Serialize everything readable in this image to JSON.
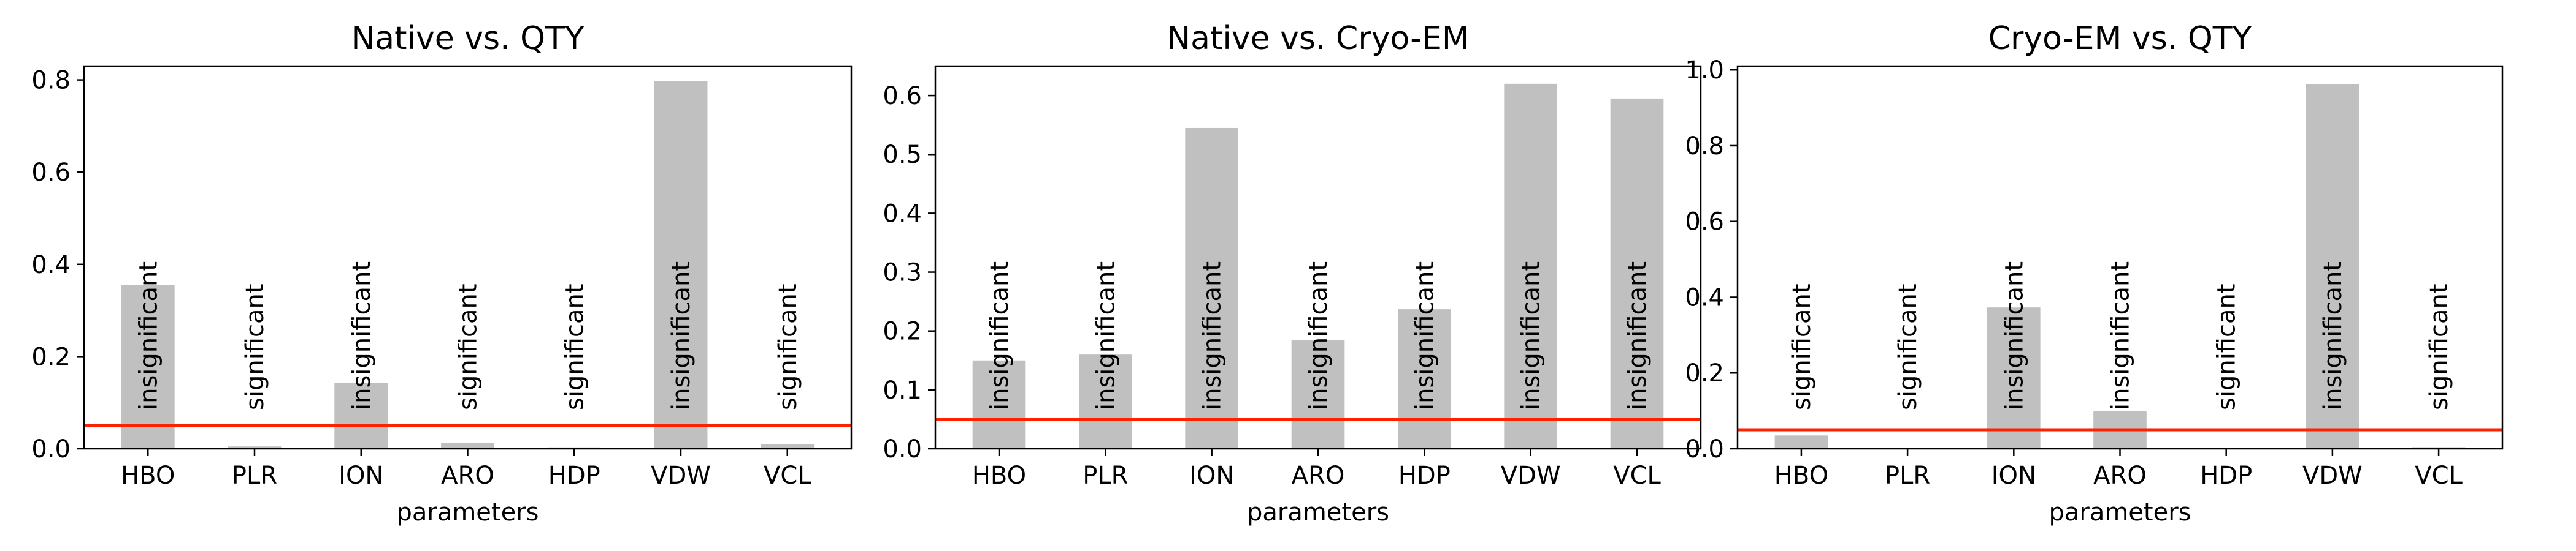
{
  "chart_data": [
    {
      "type": "bar",
      "title": "Native vs. QTY",
      "xlabel": "parameters",
      "ylabel": "",
      "categories": [
        "HBO",
        "PLR",
        "ION",
        "ARO",
        "HDP",
        "VDW",
        "VCL"
      ],
      "values": [
        0.355,
        0.005,
        0.143,
        0.013,
        0.003,
        0.797,
        0.01
      ],
      "annotations": [
        "insignificant",
        "significant",
        "insignificant",
        "significant",
        "significant",
        "insignificant",
        "significant"
      ],
      "ylim": [
        0,
        0.83
      ],
      "yticks": [
        0.0,
        0.2,
        0.4,
        0.6,
        0.8
      ],
      "threshold": 0.05,
      "bar_color": "#c0c0c0",
      "threshold_color": "#ff2200",
      "grid": false
    },
    {
      "type": "bar",
      "title": "Native vs. Cryo-EM",
      "xlabel": "parameters",
      "ylabel": "",
      "categories": [
        "HBO",
        "PLR",
        "ION",
        "ARO",
        "HDP",
        "VDW",
        "VCL"
      ],
      "values": [
        0.15,
        0.16,
        0.545,
        0.185,
        0.237,
        0.62,
        0.595
      ],
      "annotations": [
        "insignificant",
        "insignificant",
        "insignificant",
        "insignificant",
        "insignificant",
        "insignificant",
        "insignificant"
      ],
      "ylim": [
        0,
        0.65
      ],
      "yticks": [
        0.0,
        0.1,
        0.2,
        0.3,
        0.4,
        0.5,
        0.6
      ],
      "threshold": 0.05,
      "bar_color": "#c0c0c0",
      "threshold_color": "#ff2200",
      "grid": false
    },
    {
      "type": "bar",
      "title": "Cryo-EM vs. QTY",
      "xlabel": "parameters",
      "ylabel": "",
      "categories": [
        "HBO",
        "PLR",
        "ION",
        "ARO",
        "HDP",
        "VDW",
        "VCL"
      ],
      "values": [
        0.035,
        0.003,
        0.373,
        0.1,
        0.002,
        0.962,
        0.004
      ],
      "annotations": [
        "significant",
        "significant",
        "insignificant",
        "insignificant",
        "significant",
        "insignificant",
        "significant"
      ],
      "ylim": [
        0,
        1.01
      ],
      "yticks": [
        0.0,
        0.2,
        0.4,
        0.6,
        0.8,
        1.0
      ],
      "threshold": 0.05,
      "bar_color": "#c0c0c0",
      "threshold_color": "#ff2200",
      "grid": false
    }
  ]
}
